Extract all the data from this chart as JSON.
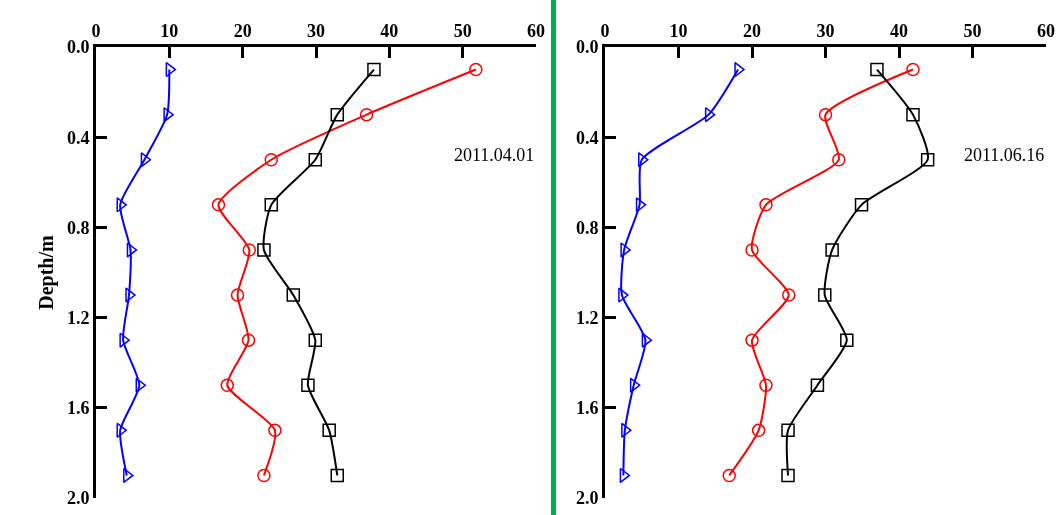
{
  "chart_data": [
    {
      "type": "line",
      "ylabel": "Depth/m",
      "annotations": [
        "2011.04.01"
      ],
      "grid": false,
      "legend": false,
      "line_style": "solid",
      "xlim": [
        0,
        60
      ],
      "xticks": [
        0,
        10,
        20,
        30,
        40,
        50,
        60
      ],
      "ylim": [
        2.0,
        0.0
      ],
      "yticks": [
        {
          "value": 0,
          "label": "0.0"
        },
        {
          "value": 0.4,
          "label": "0.4"
        },
        {
          "value": 0.8,
          "label": "0.8"
        },
        {
          "value": 1.2,
          "label": "1.2"
        },
        {
          "value": 1.6,
          "label": "1.6"
        },
        {
          "value": 2.0,
          "label": "2.0"
        }
      ],
      "series": [
        {
          "color": "#0000ff",
          "marker": "triangle",
          "x": [
            10,
            9.7,
            6.6,
            3.3,
            4.7,
            4.5,
            3.7,
            5.9,
            3.3,
            4.2
          ],
          "values": [
            0.1,
            0.3,
            0.5,
            0.7,
            0.9,
            1.1,
            1.3,
            1.5,
            1.7,
            1.9
          ]
        },
        {
          "color": "#ff0000",
          "marker": "circle",
          "x": [
            51.8,
            36.9,
            23.9,
            16.7,
            20.9,
            19.3,
            20.8,
            17.9,
            24.4,
            22.9
          ],
          "values": [
            0.1,
            0.3,
            0.5,
            0.7,
            0.9,
            1.1,
            1.3,
            1.5,
            1.7,
            1.9
          ]
        },
        {
          "color": "#000000",
          "marker": "square",
          "x": [
            37.9,
            32.9,
            29.9,
            23.9,
            22.9,
            26.9,
            29.9,
            28.9,
            31.8,
            32.9
          ],
          "values": [
            0.1,
            0.3,
            0.5,
            0.7,
            0.9,
            1.1,
            1.3,
            1.5,
            1.7,
            1.9
          ]
        }
      ]
    },
    {
      "type": "line",
      "annotations": [
        "2011.06.16"
      ],
      "grid": false,
      "legend": false,
      "line_style": "solid",
      "xlim": [
        0,
        60
      ],
      "xticks": [
        0,
        10,
        20,
        30,
        40,
        50,
        60
      ],
      "ylim": [
        2.0,
        0.0
      ],
      "yticks": [
        {
          "value": 0,
          "label": "0.0"
        },
        {
          "value": 0.4,
          "label": "0.4"
        },
        {
          "value": 0.8,
          "label": "0.8"
        },
        {
          "value": 1.2,
          "label": "1.2"
        },
        {
          "value": 1.6,
          "label": "1.6"
        },
        {
          "value": 2.0,
          "label": "2.0"
        }
      ],
      "series": [
        {
          "color": "#0000ff",
          "marker": "triangle",
          "x": [
            18.1,
            14.1,
            5.0,
            4.7,
            2.6,
            2.3,
            5.5,
            3.9,
            2.7,
            2.5
          ],
          "values": [
            0.1,
            0.3,
            0.5,
            0.7,
            0.9,
            1.1,
            1.3,
            1.5,
            1.7,
            1.9
          ]
        },
        {
          "color": "#ff0000",
          "marker": "circle",
          "x": [
            41.9,
            30.0,
            31.8,
            21.9,
            20.0,
            25.0,
            20.0,
            21.9,
            20.9,
            16.9
          ],
          "values": [
            0.1,
            0.3,
            0.5,
            0.7,
            0.9,
            1.1,
            1.3,
            1.5,
            1.7,
            1.9
          ]
        },
        {
          "color": "#000000",
          "marker": "square",
          "x": [
            37.0,
            41.9,
            43.9,
            34.9,
            30.9,
            29.9,
            32.9,
            28.9,
            24.9,
            24.9
          ],
          "values": [
            0.1,
            0.3,
            0.5,
            0.7,
            0.9,
            1.1,
            1.3,
            1.5,
            1.7,
            1.9
          ]
        }
      ]
    }
  ]
}
